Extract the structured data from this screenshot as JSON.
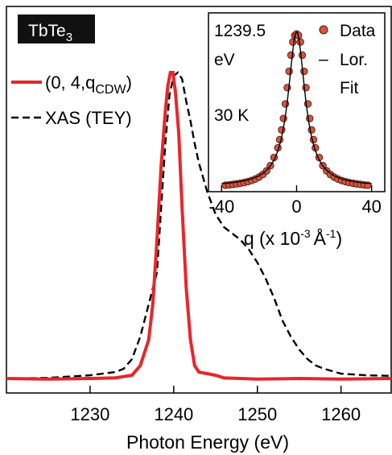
{
  "chart_data": [
    {
      "type": "line",
      "badge": {
        "main": "TbTe",
        "sub": "3"
      },
      "xlabel": "Photon Energy (eV)",
      "ylabel": "",
      "xlim": [
        1220,
        1266
      ],
      "ylim": [
        0,
        1.0
      ],
      "xticks": [
        1230,
        1240,
        1250,
        1260
      ],
      "grid": false,
      "legend_position": "top-left",
      "colors": {
        "rxs": "#e8262b",
        "xas": "#000000",
        "badge": "#111111"
      },
      "series": [
        {
          "key": "rxs",
          "legend_main": "(0, 4,q",
          "legend_sub": "CDW",
          "legend_close": ")",
          "style": "solid",
          "x": [
            1220,
            1225,
            1230,
            1233,
            1235,
            1236,
            1237,
            1237.5,
            1238,
            1238.5,
            1239,
            1239.3,
            1239.6,
            1239.9,
            1240.2,
            1240.6,
            1241,
            1241.5,
            1242,
            1242.5,
            1243,
            1244,
            1245,
            1246,
            1248,
            1250,
            1255,
            1260,
            1266
          ],
          "y": [
            0.02,
            0.018,
            0.02,
            0.022,
            0.03,
            0.06,
            0.14,
            0.25,
            0.45,
            0.68,
            0.85,
            0.93,
            0.97,
            0.97,
            0.91,
            0.78,
            0.55,
            0.3,
            0.14,
            0.06,
            0.04,
            0.035,
            0.03,
            0.022,
            0.02,
            0.018,
            0.02,
            0.018,
            0.02
          ]
        },
        {
          "key": "xas",
          "legend": "XAS (TEY)",
          "style": "dashed",
          "x": [
            1220,
            1225,
            1230,
            1233,
            1234,
            1235,
            1236,
            1237,
            1238,
            1238.5,
            1239,
            1239.5,
            1240,
            1240.5,
            1241,
            1241.5,
            1242,
            1242.5,
            1243,
            1244,
            1245,
            1246,
            1247,
            1248,
            1249,
            1250,
            1251,
            1252,
            1253,
            1254,
            1255,
            1256,
            1257,
            1258,
            1260,
            1263,
            1266
          ],
          "y": [
            0.02,
            0.022,
            0.03,
            0.04,
            0.05,
            0.08,
            0.15,
            0.25,
            0.35,
            0.55,
            0.75,
            0.9,
            0.96,
            0.97,
            0.95,
            0.88,
            0.82,
            0.75,
            0.69,
            0.6,
            0.53,
            0.49,
            0.47,
            0.45,
            0.42,
            0.38,
            0.33,
            0.27,
            0.2,
            0.15,
            0.11,
            0.08,
            0.06,
            0.05,
            0.035,
            0.03,
            0.028
          ]
        }
      ]
    },
    {
      "type": "scatter",
      "xlabel_main": "q (x 10",
      "xlabel_sup": "-3",
      "xlabel_unit": "Å",
      "xlabel_sup2": "-1",
      "xlabel_close": ")",
      "xlim": [
        -47,
        47
      ],
      "ylim": [
        0,
        1.0
      ],
      "xticks": [
        -40,
        0,
        40
      ],
      "energy_value": "1239.5",
      "energy_unit": "eV",
      "temperature": "30 K",
      "legend_data": "Data",
      "legend_fit_1": "Lor.",
      "legend_fit_2": "Fit",
      "legend_fit_dash": "–",
      "colors": {
        "marker_fill": "#d9533f",
        "marker_edge": "#4a1a12",
        "fit": "#000000"
      },
      "fit": {
        "center": 0,
        "hwhm": 5.5,
        "amplitude": 0.95
      },
      "series": [
        {
          "name": "Data",
          "x": [
            -38,
            -36,
            -34,
            -32,
            -30,
            -28,
            -26,
            -24,
            -22,
            -20,
            -18,
            -16,
            -14,
            -12,
            -10,
            -9,
            -8,
            -7,
            -6,
            -5,
            -4,
            -3,
            -2,
            -1,
            0,
            1,
            2,
            3,
            4,
            5,
            6,
            7,
            8,
            9,
            10,
            12,
            14,
            16,
            18,
            20,
            22,
            24,
            26,
            28,
            30,
            32,
            34,
            36,
            38
          ],
          "y": [
            0.02,
            0.022,
            0.025,
            0.028,
            0.032,
            0.036,
            0.042,
            0.049,
            0.058,
            0.07,
            0.086,
            0.108,
            0.14,
            0.19,
            0.25,
            0.3,
            0.36,
            0.43,
            0.52,
            0.62,
            0.72,
            0.82,
            0.9,
            0.94,
            0.95,
            0.94,
            0.9,
            0.82,
            0.72,
            0.62,
            0.52,
            0.43,
            0.36,
            0.3,
            0.25,
            0.19,
            0.14,
            0.108,
            0.086,
            0.07,
            0.058,
            0.049,
            0.042,
            0.036,
            0.032,
            0.028,
            0.025,
            0.022,
            0.02
          ]
        }
      ]
    }
  ]
}
